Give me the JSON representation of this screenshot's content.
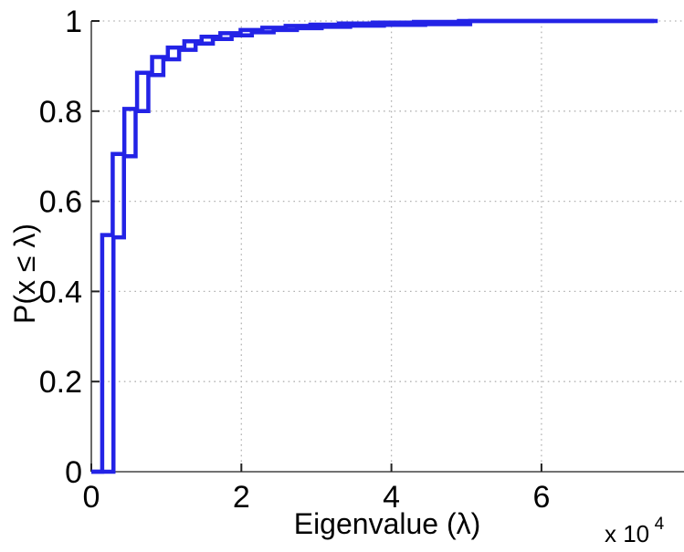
{
  "chart_data": {
    "type": "line",
    "subtype": "step-ecdf-staircase",
    "title": "",
    "xlabel": "Eigenvalue (λ)",
    "ylabel": "P(x ≤ λ)",
    "x_scale_label_base": "x 10",
    "x_scale_label_exponent": "4",
    "xlim": [
      0,
      79000
    ],
    "ylim": [
      0,
      1
    ],
    "xticks": [
      {
        "value": 0,
        "label": "0"
      },
      {
        "value": 20000,
        "label": "2"
      },
      {
        "value": 40000,
        "label": "4"
      },
      {
        "value": 60000,
        "label": "6"
      }
    ],
    "yticks": [
      {
        "value": 0,
        "label": "0"
      },
      {
        "value": 0.2,
        "label": "0.2"
      },
      {
        "value": 0.4,
        "label": "0.4"
      },
      {
        "value": 0.6,
        "label": "0.6"
      },
      {
        "value": 0.8,
        "label": "0.8"
      },
      {
        "value": 1,
        "label": "1"
      }
    ],
    "grid": {
      "style": "dotted",
      "color": "#b2b2b2",
      "x_values": [
        20000,
        40000,
        60000
      ],
      "y_values": [
        0.2,
        0.4,
        0.6,
        0.8,
        1.0
      ]
    },
    "axis_color": "#444444",
    "tick_color": "#222222",
    "line_color": "#2323e6",
    "line_width": 4.5,
    "legend": null,
    "series": [
      {
        "name": "ecdf-curve-1",
        "start": [
          0,
          0
        ],
        "end_x": 75000,
        "jumps": [
          [
            1450,
            0.525
          ],
          [
            2850,
            0.705
          ],
          [
            4400,
            0.805
          ],
          [
            6100,
            0.885
          ],
          [
            8100,
            0.92
          ],
          [
            10200,
            0.941
          ],
          [
            12400,
            0.955
          ],
          [
            14700,
            0.965
          ],
          [
            17200,
            0.973
          ],
          [
            19900,
            0.98
          ],
          [
            22800,
            0.985
          ],
          [
            25900,
            0.989
          ],
          [
            29200,
            0.992
          ],
          [
            33000,
            0.9945
          ],
          [
            37500,
            0.9965
          ],
          [
            43000,
            0.998
          ],
          [
            49000,
            1.0
          ]
        ]
      },
      {
        "name": "ecdf-curve-2",
        "start": [
          0,
          0
        ],
        "end_x": 75500,
        "jumps": [
          [
            2950,
            0.52
          ],
          [
            4350,
            0.7
          ],
          [
            5900,
            0.8
          ],
          [
            7600,
            0.88
          ],
          [
            9600,
            0.915
          ],
          [
            11700,
            0.936
          ],
          [
            13900,
            0.95
          ],
          [
            16200,
            0.96
          ],
          [
            18700,
            0.968
          ],
          [
            21400,
            0.975
          ],
          [
            24300,
            0.98
          ],
          [
            27400,
            0.984
          ],
          [
            30700,
            0.987
          ],
          [
            34500,
            0.9895
          ],
          [
            39000,
            0.9915
          ],
          [
            44500,
            0.993
          ],
          [
            50500,
            1.0
          ]
        ]
      }
    ]
  }
}
